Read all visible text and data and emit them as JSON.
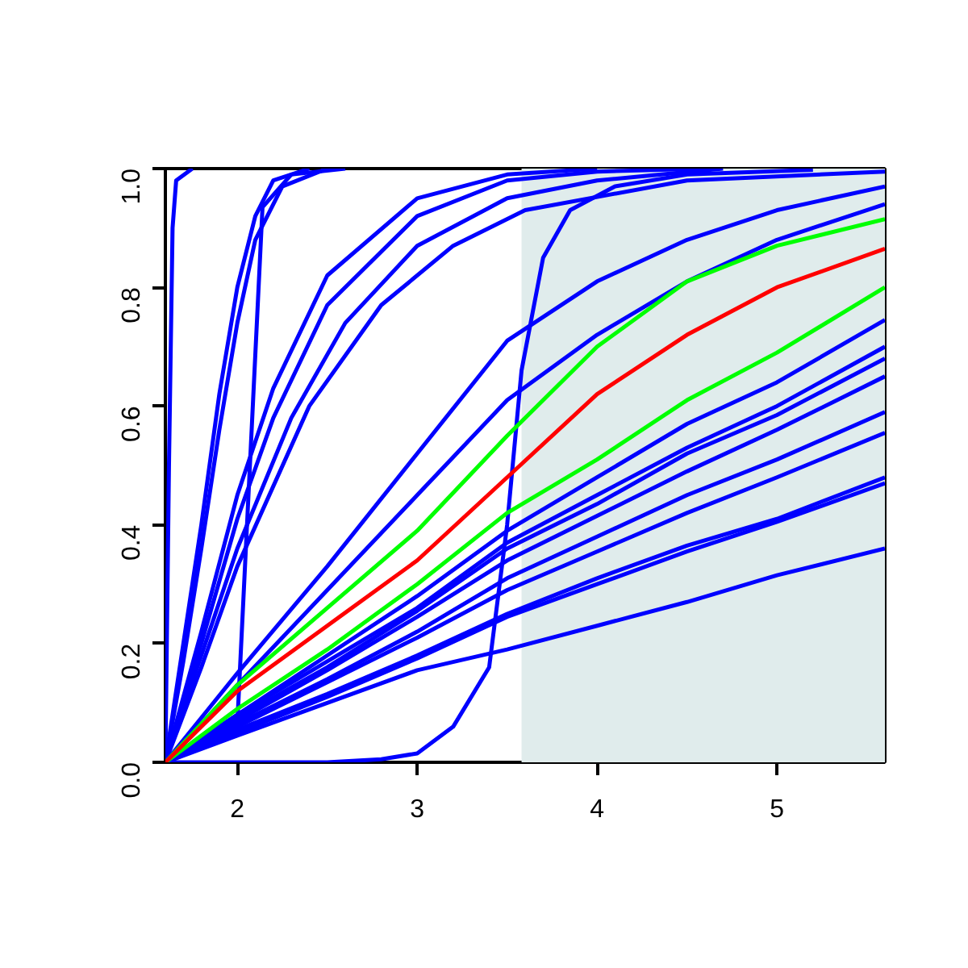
{
  "chart_data": {
    "type": "line",
    "xlim": [
      1.6,
      5.6
    ],
    "ylim": [
      0,
      1
    ],
    "xticks": [
      2,
      3,
      4,
      5
    ],
    "yticks": [
      {
        "value": 0,
        "label": "0.0"
      },
      {
        "value": 0.2,
        "label": "0.2"
      },
      {
        "value": 0.4,
        "label": "0.4"
      },
      {
        "value": 0.6,
        "label": "0.6"
      },
      {
        "value": 0.8,
        "label": "0.8"
      },
      {
        "value": 1,
        "label": "1.0"
      }
    ],
    "grid": false,
    "marker": "none",
    "line_style": "solid",
    "bands": [
      {
        "axis": "x",
        "from": 3.58,
        "to": 5.6,
        "color": "#e0ecec"
      }
    ],
    "series": [
      {
        "color": "#0000ff",
        "x": [
          1.6,
          1.62,
          1.64,
          1.66,
          1.75
        ],
        "values": [
          0,
          0.5,
          0.9,
          0.98,
          1.0
        ]
      },
      {
        "color": "#0000ff",
        "x": [
          1.6,
          1.7,
          1.8,
          1.9,
          2.0,
          2.1,
          2.2,
          2.4
        ],
        "values": [
          0,
          0.2,
          0.4,
          0.62,
          0.8,
          0.92,
          0.98,
          1.0
        ]
      },
      {
        "color": "#0000ff",
        "x": [
          1.6,
          1.7,
          1.8,
          1.9,
          2.0,
          2.1,
          2.25,
          2.5
        ],
        "values": [
          0,
          0.17,
          0.36,
          0.56,
          0.74,
          0.88,
          0.97,
          1.0
        ]
      },
      {
        "color": "#0000ff",
        "x": [
          1.6,
          1.9,
          2.0,
          2.07,
          2.14,
          2.3,
          2.6
        ],
        "values": [
          0,
          0.04,
          0.065,
          0.5,
          0.935,
          0.99,
          1.0
        ]
      },
      {
        "color": "#0000ff",
        "x": [
          1.6,
          1.8,
          2.0,
          2.2,
          2.5,
          3.0,
          3.5,
          4.0
        ],
        "values": [
          0,
          0.22,
          0.45,
          0.63,
          0.82,
          0.95,
          0.99,
          1.0
        ]
      },
      {
        "color": "#0000ff",
        "x": [
          1.6,
          1.8,
          2.0,
          2.2,
          2.5,
          3.0,
          3.5,
          4.0,
          4.6
        ],
        "values": [
          0,
          0.2,
          0.41,
          0.58,
          0.77,
          0.92,
          0.98,
          0.995,
          1.0
        ]
      },
      {
        "color": "#0000ff",
        "x": [
          1.6,
          1.8,
          2.0,
          2.3,
          2.6,
          3.0,
          3.5,
          4.0,
          4.7
        ],
        "values": [
          0,
          0.18,
          0.36,
          0.58,
          0.74,
          0.87,
          0.95,
          0.98,
          1.0
        ]
      },
      {
        "color": "#0000ff",
        "x": [
          1.6,
          1.8,
          2.0,
          2.4,
          2.8,
          3.2,
          3.6,
          4.5,
          5.6
        ],
        "values": [
          0,
          0.16,
          0.33,
          0.6,
          0.77,
          0.87,
          0.93,
          0.98,
          0.995
        ]
      },
      {
        "color": "#0000ff",
        "x": [
          1.6,
          2.5,
          2.8,
          3.0,
          3.2,
          3.4,
          3.5,
          3.58,
          3.7,
          3.85,
          4.1,
          4.5,
          5.2
        ],
        "values": [
          0,
          0,
          0.005,
          0.015,
          0.06,
          0.16,
          0.4,
          0.66,
          0.85,
          0.93,
          0.97,
          0.99,
          0.998
        ]
      },
      {
        "color": "#0000ff",
        "x": [
          1.6,
          2.0,
          2.5,
          3.0,
          3.5,
          4.0,
          4.5,
          5.0,
          5.6
        ],
        "values": [
          0,
          0.15,
          0.33,
          0.52,
          0.71,
          0.81,
          0.88,
          0.93,
          0.97
        ]
      },
      {
        "color": "#0000ff",
        "x": [
          1.6,
          2.0,
          2.5,
          3.0,
          3.5,
          4.0,
          4.5,
          5.0,
          5.6
        ],
        "values": [
          0,
          0.13,
          0.29,
          0.45,
          0.61,
          0.72,
          0.81,
          0.88,
          0.94
        ]
      },
      {
        "color": "#0000ff",
        "x": [
          1.6,
          2.0,
          2.5,
          3.0,
          3.5,
          4.0,
          4.5,
          5.0,
          5.6
        ],
        "values": [
          0,
          0.08,
          0.18,
          0.28,
          0.39,
          0.48,
          0.57,
          0.64,
          0.745
        ]
      },
      {
        "color": "#0000ff",
        "x": [
          1.6,
          2.0,
          2.5,
          3.0,
          3.5,
          4.0,
          4.5,
          5.0,
          5.6
        ],
        "values": [
          0,
          0.08,
          0.17,
          0.26,
          0.37,
          0.45,
          0.53,
          0.6,
          0.7
        ]
      },
      {
        "color": "#0000ff",
        "x": [
          1.6,
          2.0,
          2.5,
          3.0,
          3.5,
          4.0,
          4.5,
          5.0,
          5.6
        ],
        "values": [
          0,
          0.075,
          0.16,
          0.255,
          0.36,
          0.435,
          0.52,
          0.585,
          0.68
        ]
      },
      {
        "color": "#0000ff",
        "x": [
          1.6,
          2.0,
          2.5,
          3.0,
          3.5,
          4.0,
          4.5,
          5.0,
          5.6
        ],
        "values": [
          0,
          0.07,
          0.155,
          0.245,
          0.34,
          0.415,
          0.49,
          0.56,
          0.65
        ]
      },
      {
        "color": "#0000ff",
        "x": [
          1.6,
          2.0,
          2.5,
          3.0,
          3.5,
          4.0,
          4.5,
          5.0,
          5.6
        ],
        "values": [
          0,
          0.065,
          0.14,
          0.22,
          0.31,
          0.38,
          0.45,
          0.51,
          0.59
        ]
      },
      {
        "color": "#0000ff",
        "x": [
          1.6,
          2.0,
          2.5,
          3.0,
          3.5,
          4.0,
          4.5,
          5.0,
          5.6
        ],
        "values": [
          0,
          0.06,
          0.135,
          0.21,
          0.29,
          0.355,
          0.42,
          0.48,
          0.555
        ]
      },
      {
        "color": "#0000ff",
        "x": [
          1.6,
          2.0,
          2.5,
          3.0,
          3.5,
          4.0,
          4.5,
          5.0,
          5.6
        ],
        "values": [
          0,
          0.055,
          0.115,
          0.18,
          0.25,
          0.31,
          0.365,
          0.41,
          0.48
        ]
      },
      {
        "color": "#0000ff",
        "x": [
          1.6,
          2.0,
          2.5,
          3.0,
          3.5,
          4.0,
          4.5,
          5.0,
          5.6
        ],
        "values": [
          0,
          0.05,
          0.11,
          0.175,
          0.245,
          0.3,
          0.355,
          0.405,
          0.47
        ]
      },
      {
        "color": "#0000ff",
        "x": [
          1.6,
          2.0,
          2.5,
          3.0,
          3.5,
          4.0,
          4.5,
          5.0,
          5.6
        ],
        "values": [
          0,
          0.045,
          0.1,
          0.155,
          0.19,
          0.23,
          0.27,
          0.315,
          0.36
        ]
      },
      {
        "color": "#00ff00",
        "x": [
          1.6,
          2.0,
          2.5,
          3.0,
          3.5,
          4.0,
          4.5,
          5.0,
          5.6
        ],
        "values": [
          0,
          0.09,
          0.19,
          0.3,
          0.42,
          0.51,
          0.61,
          0.69,
          0.8
        ]
      },
      {
        "color": "#00ff00",
        "x": [
          1.6,
          2.0,
          2.5,
          3.0,
          3.5,
          4.0,
          4.5,
          5.0,
          5.6
        ],
        "values": [
          0,
          0.13,
          0.26,
          0.39,
          0.55,
          0.7,
          0.81,
          0.87,
          0.915
        ]
      },
      {
        "color": "#ff0000",
        "x": [
          1.6,
          2.0,
          2.5,
          3.0,
          3.5,
          4.0,
          4.5,
          5.0,
          5.6
        ],
        "values": [
          0,
          0.12,
          0.23,
          0.34,
          0.48,
          0.62,
          0.72,
          0.8,
          0.865
        ]
      }
    ]
  }
}
